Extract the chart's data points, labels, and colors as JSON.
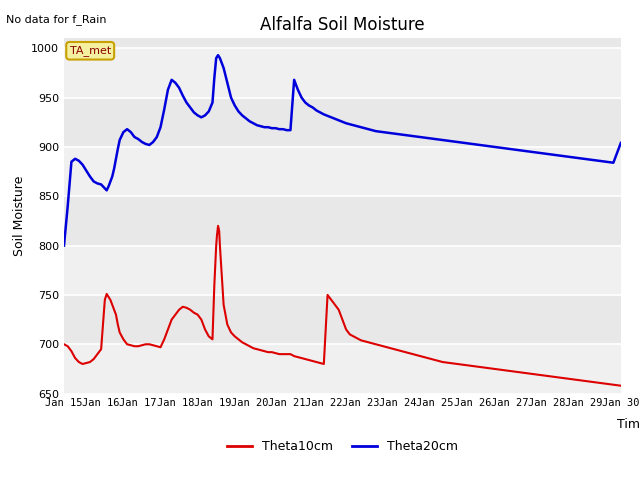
{
  "title": "Alfalfa Soil Moisture",
  "xlabel": "Time",
  "ylabel": "Soil Moisture",
  "top_label": "No data for f_Rain",
  "legend_label": "TA_met",
  "xlim": [
    0,
    15
  ],
  "ylim": [
    650,
    1010
  ],
  "yticks": [
    650,
    700,
    750,
    800,
    850,
    900,
    950,
    1000
  ],
  "xtick_labels": [
    "Jan 15",
    "Jan 16",
    "Jan 17",
    "Jan 18",
    "Jan 19",
    "Jan 20",
    "Jan 21",
    "Jan 22",
    "Jan 23",
    "Jan 24",
    "Jan 25",
    "Jan 26",
    "Jan 27",
    "Jan 28",
    "Jan 29",
    "Jan 30"
  ],
  "bg_color": "#e8e8e8",
  "bg_light": "#f0f0f0",
  "fig_color": "#ffffff",
  "line1_color": "#dd0000",
  "line2_color": "#0000dd",
  "theta10_x": [
    0.0,
    0.1,
    0.2,
    0.3,
    0.4,
    0.5,
    0.6,
    0.7,
    0.8,
    0.9,
    1.0,
    1.05,
    1.1,
    1.15,
    1.2,
    1.25,
    1.3,
    1.35,
    1.4,
    1.45,
    1.5,
    1.6,
    1.7,
    1.8,
    1.9,
    2.0,
    2.1,
    2.2,
    2.3,
    2.4,
    2.5,
    2.6,
    2.7,
    2.8,
    2.9,
    3.0,
    3.1,
    3.2,
    3.3,
    3.4,
    3.5,
    3.6,
    3.7,
    3.8,
    3.9,
    4.0,
    4.05,
    4.1,
    4.12,
    4.15,
    4.18,
    4.2,
    4.3,
    4.4,
    4.5,
    4.6,
    4.7,
    4.8,
    4.9,
    5.0,
    5.1,
    5.2,
    5.3,
    5.4,
    5.5,
    5.6,
    5.7,
    5.8,
    5.9,
    6.0,
    6.1,
    6.2,
    6.3,
    6.4,
    6.5,
    6.6,
    6.7,
    6.8,
    6.9,
    7.0,
    7.1,
    7.2,
    7.3,
    7.4,
    7.5,
    7.6,
    7.7,
    7.8,
    7.9,
    8.0,
    8.2,
    8.4,
    8.6,
    8.8,
    9.0,
    9.2,
    9.4,
    9.6,
    9.8,
    10.0,
    10.2,
    10.4,
    10.6,
    10.8,
    11.0,
    11.2,
    11.4,
    11.6,
    11.8,
    12.0,
    12.2,
    12.4,
    12.6,
    12.8,
    13.0,
    13.2,
    13.4,
    13.6,
    13.8,
    14.0,
    14.2,
    14.4,
    14.6,
    14.8,
    15.0
  ],
  "theta10_y": [
    700,
    698,
    693,
    686,
    682,
    680,
    681,
    682,
    685,
    690,
    695,
    720,
    745,
    751,
    748,
    745,
    740,
    735,
    730,
    720,
    712,
    705,
    700,
    699,
    698,
    698,
    699,
    700,
    700,
    699,
    698,
    697,
    705,
    715,
    725,
    730,
    735,
    738,
    737,
    735,
    732,
    730,
    725,
    715,
    708,
    705,
    760,
    800,
    810,
    820,
    815,
    800,
    740,
    720,
    712,
    708,
    705,
    702,
    700,
    698,
    696,
    695,
    694,
    693,
    692,
    692,
    691,
    690,
    690,
    690,
    690,
    688,
    687,
    686,
    685,
    684,
    683,
    682,
    681,
    680,
    750,
    745,
    740,
    735,
    725,
    715,
    710,
    708,
    706,
    704,
    702,
    700,
    698,
    696,
    694,
    692,
    690,
    688,
    686,
    684,
    682,
    681,
    680,
    679,
    678,
    677,
    676,
    675,
    674,
    673,
    672,
    671,
    670,
    669,
    668,
    667,
    666,
    665,
    664,
    663,
    662,
    661,
    660,
    659,
    658
  ],
  "theta20_x": [
    0.0,
    0.1,
    0.2,
    0.3,
    0.4,
    0.5,
    0.6,
    0.7,
    0.8,
    0.9,
    1.0,
    1.05,
    1.1,
    1.15,
    1.2,
    1.25,
    1.3,
    1.35,
    1.4,
    1.45,
    1.5,
    1.6,
    1.7,
    1.8,
    1.9,
    2.0,
    2.1,
    2.2,
    2.3,
    2.4,
    2.5,
    2.6,
    2.7,
    2.8,
    2.9,
    3.0,
    3.1,
    3.2,
    3.3,
    3.4,
    3.5,
    3.6,
    3.7,
    3.8,
    3.9,
    4.0,
    4.05,
    4.1,
    4.15,
    4.2,
    4.3,
    4.4,
    4.5,
    4.6,
    4.7,
    4.8,
    4.9,
    5.0,
    5.1,
    5.2,
    5.3,
    5.4,
    5.5,
    5.6,
    5.7,
    5.8,
    5.9,
    6.0,
    6.1,
    6.2,
    6.3,
    6.4,
    6.5,
    6.6,
    6.7,
    6.8,
    6.9,
    7.0,
    7.2,
    7.4,
    7.6,
    7.8,
    8.0,
    8.2,
    8.4,
    8.6,
    8.8,
    9.0,
    9.2,
    9.4,
    9.6,
    9.8,
    10.0,
    10.2,
    10.4,
    10.6,
    10.8,
    11.0,
    11.2,
    11.4,
    11.6,
    11.8,
    12.0,
    12.2,
    12.4,
    12.6,
    12.8,
    13.0,
    13.2,
    13.4,
    13.6,
    13.8,
    14.0,
    14.2,
    14.4,
    14.6,
    14.8,
    15.0
  ],
  "theta20_y": [
    800,
    840,
    885,
    888,
    886,
    882,
    876,
    870,
    865,
    863,
    862,
    860,
    858,
    856,
    860,
    865,
    870,
    878,
    888,
    898,
    907,
    915,
    918,
    915,
    910,
    908,
    905,
    903,
    902,
    905,
    910,
    920,
    938,
    958,
    968,
    965,
    960,
    952,
    945,
    940,
    935,
    932,
    930,
    932,
    936,
    945,
    970,
    990,
    993,
    990,
    980,
    965,
    950,
    942,
    936,
    932,
    929,
    926,
    924,
    922,
    921,
    920,
    920,
    919,
    919,
    918,
    918,
    917,
    917,
    968,
    958,
    950,
    945,
    942,
    940,
    937,
    935,
    933,
    930,
    927,
    924,
    922,
    920,
    918,
    916,
    915,
    914,
    913,
    912,
    911,
    910,
    909,
    908,
    907,
    906,
    905,
    904,
    903,
    902,
    901,
    900,
    899,
    898,
    897,
    896,
    895,
    894,
    893,
    892,
    891,
    890,
    889,
    888,
    887,
    886,
    885,
    884,
    904
  ]
}
